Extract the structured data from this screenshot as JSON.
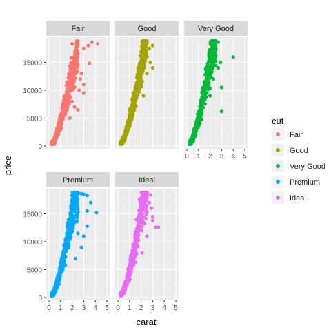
{
  "chart_data": {
    "type": "scatter",
    "xlabel": "carat",
    "ylabel": "price",
    "xlim": [
      0,
      5
    ],
    "ylim": [
      0,
      19000
    ],
    "x_ticks": [
      0,
      1,
      2,
      3,
      4,
      5
    ],
    "y_ticks": [
      0,
      5000,
      10000,
      15000
    ],
    "y_tick_labels": [
      "0",
      "5000",
      "10000",
      "15000"
    ],
    "grid": true,
    "legend": {
      "title": "cut",
      "position": "right",
      "entries": [
        "Fair",
        "Good",
        "Very Good",
        "Premium",
        "Ideal"
      ]
    },
    "series": [
      {
        "name": "Fair",
        "color": "#F8766D",
        "trend": [
          [
            0.3,
            400
          ],
          [
            0.5,
            1000
          ],
          [
            0.7,
            2400
          ],
          [
            1.0,
            4200
          ],
          [
            1.2,
            6000
          ],
          [
            1.5,
            8500
          ],
          [
            2.0,
            13000
          ],
          [
            2.5,
            16500
          ],
          [
            3.0,
            18000
          ]
        ],
        "points": [
          [
            0.25,
            350
          ],
          [
            0.3,
            500
          ],
          [
            0.4,
            800
          ],
          [
            0.5,
            1200
          ],
          [
            0.7,
            2700
          ],
          [
            0.9,
            3500
          ],
          [
            1.0,
            4500
          ],
          [
            1.1,
            5200
          ],
          [
            1.2,
            6500
          ],
          [
            1.5,
            9000
          ],
          [
            1.7,
            10500
          ],
          [
            2.0,
            13500
          ],
          [
            2.2,
            15500
          ],
          [
            2.5,
            16500
          ],
          [
            2.0,
            18300
          ],
          [
            2.5,
            18200
          ],
          [
            3.0,
            17500
          ],
          [
            3.7,
            18600
          ],
          [
            4.2,
            18300
          ],
          [
            3.4,
            18000
          ],
          [
            2.8,
            13000
          ],
          [
            3.0,
            11000
          ],
          [
            2.6,
            10000
          ],
          [
            2.0,
            8000
          ],
          [
            2.2,
            7000
          ],
          [
            3.5,
            14800
          ],
          [
            2.5,
            6500
          ],
          [
            1.8,
            5000
          ],
          [
            3.0,
            9500
          ],
          [
            2.7,
            12000
          ]
        ]
      },
      {
        "name": "Good",
        "color": "#A3A500",
        "trend": [
          [
            0.25,
            350
          ],
          [
            0.5,
            1200
          ],
          [
            0.7,
            2400
          ],
          [
            1.0,
            4500
          ],
          [
            1.2,
            6200
          ],
          [
            1.5,
            9000
          ],
          [
            2.0,
            14500
          ],
          [
            2.3,
            17500
          ],
          [
            2.6,
            18500
          ]
        ],
        "points": [
          [
            0.25,
            350
          ],
          [
            0.3,
            500
          ],
          [
            0.5,
            1400
          ],
          [
            0.7,
            2700
          ],
          [
            1.0,
            5000
          ],
          [
            1.2,
            6800
          ],
          [
            1.5,
            9500
          ],
          [
            1.7,
            11500
          ],
          [
            2.0,
            15000
          ],
          [
            2.1,
            18500
          ],
          [
            2.3,
            18700
          ],
          [
            2.5,
            18400
          ],
          [
            2.7,
            17500
          ],
          [
            3.0,
            18000
          ],
          [
            2.8,
            15000
          ],
          [
            2.5,
            13000
          ],
          [
            3.0,
            14000
          ],
          [
            2.2,
            9000
          ],
          [
            1.5,
            7000
          ],
          [
            2.0,
            11000
          ]
        ]
      },
      {
        "name": "Very Good",
        "color": "#00BA38",
        "trend": [
          [
            0.25,
            350
          ],
          [
            0.5,
            1300
          ],
          [
            0.7,
            2500
          ],
          [
            1.0,
            4800
          ],
          [
            1.2,
            6500
          ],
          [
            1.5,
            9500
          ],
          [
            2.0,
            15000
          ],
          [
            2.3,
            17500
          ],
          [
            2.6,
            18500
          ]
        ],
        "points": [
          [
            0.25,
            350
          ],
          [
            0.3,
            500
          ],
          [
            0.5,
            1500
          ],
          [
            0.7,
            2800
          ],
          [
            1.0,
            5200
          ],
          [
            1.2,
            7000
          ],
          [
            1.5,
            10000
          ],
          [
            1.7,
            12000
          ],
          [
            2.0,
            15500
          ],
          [
            2.2,
            18500
          ],
          [
            2.4,
            18600
          ],
          [
            2.7,
            18600
          ],
          [
            2.5,
            17500
          ],
          [
            2.9,
            15000
          ],
          [
            3.0,
            10500
          ],
          [
            4.0,
            15950
          ],
          [
            3.0,
            6200
          ],
          [
            2.0,
            9000
          ],
          [
            2.3,
            12000
          ],
          [
            2.7,
            14000
          ]
        ]
      },
      {
        "name": "Premium",
        "color": "#00A9FF",
        "trend": [
          [
            0.25,
            350
          ],
          [
            0.5,
            1300
          ],
          [
            0.7,
            2500
          ],
          [
            1.0,
            4800
          ],
          [
            1.2,
            6500
          ],
          [
            1.5,
            9500
          ],
          [
            2.0,
            15500
          ],
          [
            2.3,
            17800
          ],
          [
            2.6,
            18600
          ]
        ],
        "points": [
          [
            0.25,
            350
          ],
          [
            0.3,
            500
          ],
          [
            0.5,
            1500
          ],
          [
            0.7,
            2800
          ],
          [
            1.0,
            5200
          ],
          [
            1.2,
            7000
          ],
          [
            1.5,
            10000
          ],
          [
            1.7,
            12000
          ],
          [
            2.0,
            16000
          ],
          [
            2.2,
            18500
          ],
          [
            2.5,
            18600
          ],
          [
            2.8,
            18600
          ],
          [
            3.0,
            18500
          ],
          [
            3.3,
            18300
          ],
          [
            3.6,
            17000
          ],
          [
            4.1,
            15200
          ],
          [
            3.3,
            15500
          ],
          [
            3.0,
            11000
          ],
          [
            3.3,
            12800
          ],
          [
            2.8,
            9000
          ],
          [
            2.3,
            7000
          ],
          [
            2.5,
            11500
          ]
        ]
      },
      {
        "name": "Ideal",
        "color": "#E76BF3",
        "trend": [
          [
            0.25,
            350
          ],
          [
            0.5,
            1300
          ],
          [
            0.7,
            2500
          ],
          [
            1.0,
            4800
          ],
          [
            1.2,
            6500
          ],
          [
            1.5,
            9500
          ],
          [
            2.0,
            15500
          ],
          [
            2.3,
            18000
          ],
          [
            2.6,
            18600
          ]
        ],
        "points": [
          [
            0.25,
            350
          ],
          [
            0.3,
            500
          ],
          [
            0.5,
            1500
          ],
          [
            0.7,
            2800
          ],
          [
            1.0,
            5200
          ],
          [
            1.2,
            7000
          ],
          [
            1.5,
            10000
          ],
          [
            1.7,
            12000
          ],
          [
            2.0,
            16000
          ],
          [
            2.2,
            18500
          ],
          [
            2.5,
            18600
          ],
          [
            2.8,
            18400
          ],
          [
            2.7,
            17000
          ],
          [
            3.0,
            14500
          ],
          [
            3.5,
            12600
          ],
          [
            3.3,
            12600
          ],
          [
            2.5,
            11000
          ],
          [
            3.0,
            13800
          ],
          [
            2.9,
            16000
          ],
          [
            2.1,
            8000
          ]
        ]
      }
    ]
  }
}
